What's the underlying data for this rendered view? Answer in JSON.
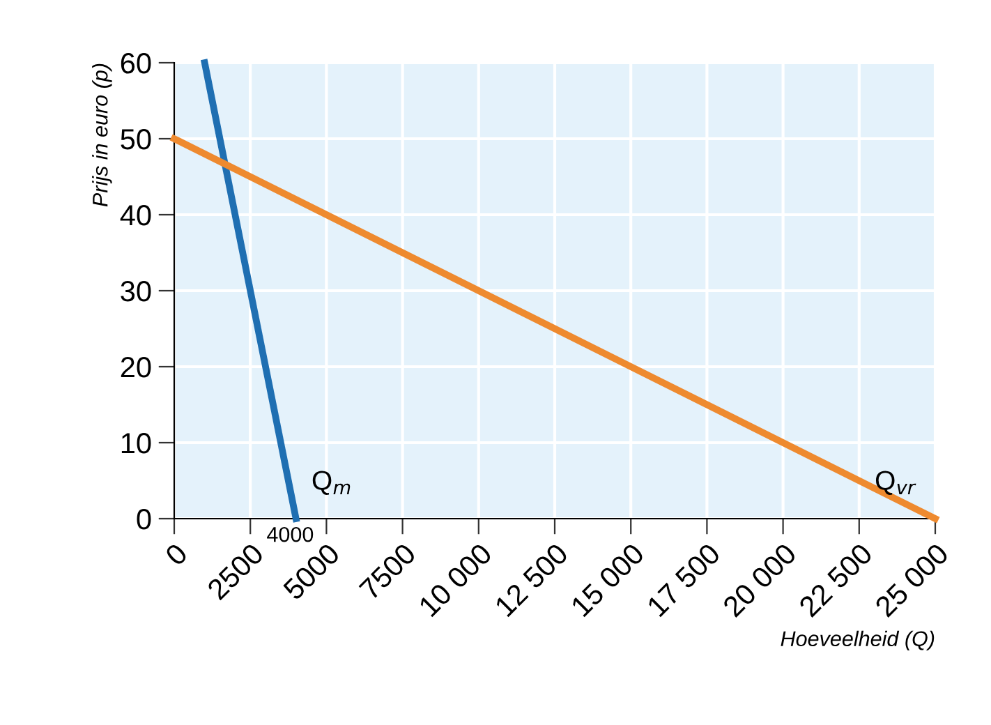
{
  "chart_data": {
    "type": "line",
    "xlabel": "Hoeveelheid (Q)",
    "ylabel": "Prijs in euro (p)",
    "series": [
      {
        "name": "Q$_{m}$",
        "color": "#1f6fb2",
        "x": [
          1000,
          4000
        ],
        "values": [
          60,
          0
        ]
      },
      {
        "name": "Q$_{vr}$",
        "color": "#ee8a2f",
        "x": [
          0,
          25000
        ],
        "values": [
          50,
          0
        ]
      }
    ],
    "xlim": [
      0,
      25000
    ],
    "ylim": [
      0,
      60
    ],
    "xticks": [
      0,
      2500,
      5000,
      7500,
      {
        "value": 10000,
        "label": "10 000"
      },
      {
        "value": 12500,
        "label": "12 500"
      },
      {
        "value": 15000,
        "label": "15 000"
      },
      {
        "value": 17500,
        "label": "17 500"
      },
      {
        "value": 20000,
        "label": "20 000"
      },
      {
        "value": 22500,
        "label": "22 500"
      },
      {
        "value": 25000,
        "label": "25 000"
      }
    ],
    "yticks": [
      0,
      10,
      20,
      30,
      40,
      50,
      60
    ],
    "annotations": [
      {
        "text": "4000",
        "x": 4000,
        "y": 0
      }
    ],
    "grid": true,
    "legend": false,
    "marker": "none",
    "line_style": "solid"
  }
}
